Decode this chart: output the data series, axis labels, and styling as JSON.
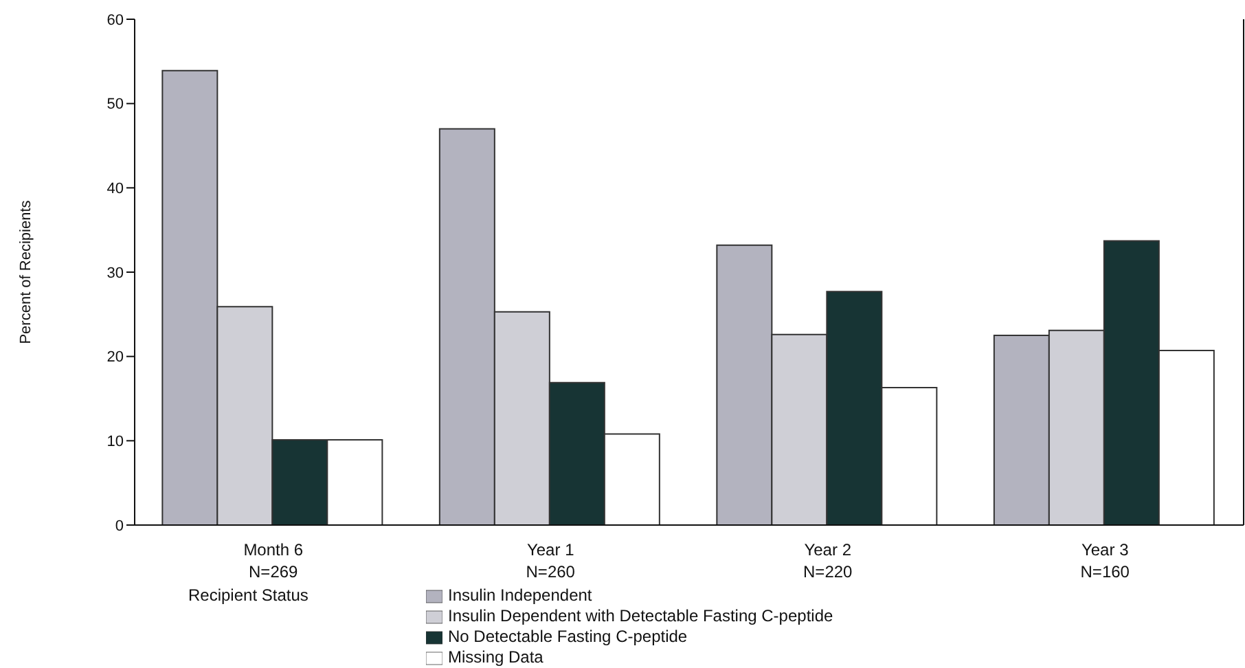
{
  "chart_data": {
    "type": "bar",
    "ylabel": "Percent of Recipients",
    "legend_title": "Recipient Status",
    "legend": "bottom",
    "grid": false,
    "categories": [
      "Month 6\nN=269",
      "Year 1\nN=260",
      "Year 2\nN=220",
      "Year 3\nN=160"
    ],
    "ylim": [
      0,
      60
    ],
    "yticks": [
      0,
      10,
      20,
      30,
      40,
      50,
      60
    ],
    "series": [
      {
        "name": "Insulin Independent",
        "color": "#b3b3bf",
        "values": [
          53.9,
          47,
          33.2,
          22.5
        ]
      },
      {
        "name": "Insulin Dependent with Detectable Fasting C-peptide",
        "color": "#cfcfd6",
        "values": [
          25.9,
          25.3,
          22.6,
          23.1
        ]
      },
      {
        "name": "No Detectable Fasting C-peptide",
        "color": "#173434",
        "values": [
          10.1,
          16.9,
          27.7,
          33.7
        ]
      },
      {
        "name": "Missing Data",
        "color": "#ffffff",
        "values": [
          10.1,
          10.8,
          16.3,
          20.7
        ]
      }
    ]
  }
}
